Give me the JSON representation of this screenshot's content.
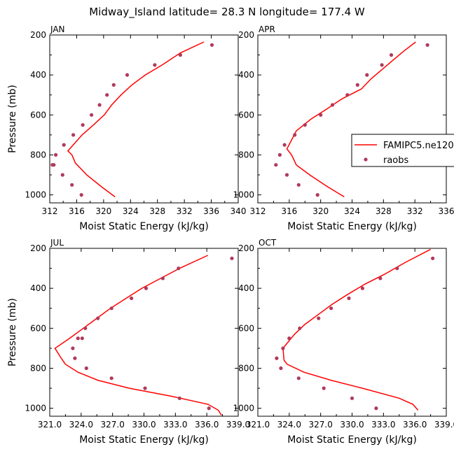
{
  "figure": {
    "title": "Midway_Island  latitude= 28.3 N longitude= 177.4 W"
  },
  "legend": {
    "model_label": "FAMIPC5.ne120.",
    "obs_label": "raobs",
    "placement": "right of APR panel",
    "model_color": "#ff0000",
    "obs_color": "#b03a5a"
  },
  "chart_data": [
    {
      "type": "line",
      "panel": "JAN",
      "title": "JAN",
      "xlabel": "Moist Static Energy (kJ/kg)",
      "ylabel": "Pressure (mb)",
      "xlim": [
        312,
        340
      ],
      "ylim": [
        200,
        1040
      ],
      "xticks": [
        312,
        316,
        320,
        324,
        328,
        332,
        336,
        340
      ],
      "xtick_labels": [
        "312",
        "316",
        "320",
        "324",
        "328",
        "332",
        "336",
        "340"
      ],
      "yticks": [
        200,
        400,
        600,
        800,
        1000
      ],
      "ytick_labels": [
        "200",
        "400",
        "600",
        "800",
        "1000"
      ],
      "series": [
        {
          "name": "FAMIPC5.ne120.",
          "style": "line",
          "x": [
            334.9,
            331.4,
            328.7,
            326.2,
            324.2,
            322.6,
            321.2,
            320.1,
            318.5,
            316.8,
            314.7,
            315.3,
            315.8,
            317.5,
            319.7,
            321.7
          ],
          "y": [
            235,
            290,
            350,
            400,
            450,
            500,
            550,
            600,
            650,
            700,
            780,
            800,
            840,
            900,
            960,
            1010
          ]
        },
        {
          "name": "raobs",
          "style": "points",
          "x": [
            336.1,
            331.4,
            327.6,
            323.5,
            321.5,
            320.5,
            319.4,
            318.2,
            316.9,
            315.5,
            314.1,
            312.9,
            312.6,
            312.4,
            313.9,
            315.3,
            316.7
          ],
          "y": [
            250,
            300,
            350,
            400,
            450,
            500,
            550,
            600,
            650,
            700,
            750,
            800,
            850,
            850,
            900,
            950,
            1000
          ]
        }
      ]
    },
    {
      "type": "line",
      "panel": "APR",
      "title": "APR",
      "xlabel": "Moist Static Energy (kJ/kg)",
      "ylabel": "",
      "xlim": [
        312,
        336
      ],
      "ylim": [
        200,
        1040
      ],
      "xticks": [
        312,
        316,
        320,
        324,
        328,
        332,
        336
      ],
      "xtick_labels": [
        "312",
        "316",
        "320",
        "324",
        "328",
        "332",
        "336"
      ],
      "yticks": [
        200,
        400,
        600,
        800,
        1000
      ],
      "ytick_labels": [
        "200",
        "400",
        "600",
        "800",
        "1000"
      ],
      "series": [
        {
          "name": "FAMIPC5.ne120.",
          "style": "line",
          "x": [
            332.1,
            330.6,
            329.1,
            327.6,
            326.4,
            325.2,
            322.7,
            320.8,
            318.8,
            316.9,
            315.7,
            316.3,
            316.9,
            318.6,
            320.9,
            323.0
          ],
          "y": [
            235,
            280,
            330,
            380,
            420,
            470,
            520,
            570,
            620,
            680,
            770,
            800,
            850,
            900,
            960,
            1010
          ]
        },
        {
          "name": "raobs",
          "style": "points",
          "x": [
            333.6,
            329.0,
            327.8,
            325.9,
            324.7,
            323.4,
            321.5,
            320.0,
            318.0,
            316.7,
            315.4,
            314.8,
            314.3,
            315.7,
            317.2,
            319.6
          ],
          "y": [
            250,
            300,
            350,
            400,
            450,
            500,
            550,
            600,
            650,
            700,
            750,
            800,
            850,
            900,
            950,
            1000
          ]
        }
      ]
    },
    {
      "type": "line",
      "panel": "JUL",
      "title": "JUL",
      "xlabel": "Moist Static Energy (kJ/kg)",
      "ylabel": "Pressure (mb)",
      "xlim": [
        321,
        339
      ],
      "ylim": [
        200,
        1040
      ],
      "xticks": [
        321,
        324,
        327,
        330,
        333,
        336,
        339
      ],
      "xtick_labels": [
        "321.0",
        "324.0",
        "327.0",
        "330.0",
        "333.0",
        "336.0",
        "339.0"
      ],
      "yticks": [
        200,
        400,
        600,
        800,
        1000
      ],
      "ytick_labels": [
        "200",
        "400",
        "600",
        "800",
        "1000"
      ],
      "series": [
        {
          "name": "FAMIPC5.ne120.",
          "style": "line",
          "x": [
            336.1,
            333.4,
            331.6,
            329.8,
            328.3,
            326.8,
            325.5,
            324.2,
            322.9,
            321.5,
            322.1,
            322.5,
            323.7,
            325.6,
            328.6,
            332.6,
            336.1,
            337.1,
            337.4
          ],
          "y": [
            235,
            300,
            350,
            400,
            450,
            500,
            550,
            600,
            650,
            700,
            750,
            780,
            820,
            860,
            900,
            940,
            980,
            1010,
            1035
          ]
        },
        {
          "name": "raobs",
          "style": "points",
          "x": [
            338.4,
            333.3,
            331.8,
            330.2,
            328.8,
            326.9,
            325.6,
            324.4,
            324.1,
            323.7,
            323.2,
            323.4,
            324.5,
            326.9,
            330.1,
            333.4,
            336.2
          ],
          "y": [
            250,
            300,
            350,
            400,
            450,
            500,
            550,
            600,
            650,
            650,
            700,
            750,
            800,
            850,
            900,
            950,
            1000
          ]
        }
      ]
    },
    {
      "type": "line",
      "panel": "OCT",
      "title": "OCT",
      "xlabel": "Moist Static Energy (kJ/kg)",
      "ylabel": "",
      "xlim": [
        321,
        339
      ],
      "ylim": [
        200,
        1040
      ],
      "xticks": [
        321,
        324,
        327,
        330,
        333,
        336,
        339
      ],
      "xtick_labels": [
        "321.0",
        "324.0",
        "327.0",
        "330.0",
        "333.0",
        "336.0",
        "339.0"
      ],
      "yticks": [
        200,
        400,
        600,
        800,
        1000
      ],
      "ytick_labels": [
        "200",
        "400",
        "600",
        "800",
        "1000"
      ],
      "series": [
        {
          "name": "FAMIPC5.ne120.",
          "style": "line",
          "x": [
            337.5,
            335.1,
            333.1,
            331.2,
            329.6,
            328.1,
            326.8,
            325.5,
            324.5,
            323.4,
            323.5,
            323.8,
            325.4,
            328.0,
            331.0,
            334.5,
            335.8,
            336.3
          ],
          "y": [
            205,
            270,
            330,
            380,
            430,
            480,
            530,
            580,
            630,
            700,
            760,
            780,
            820,
            860,
            900,
            950,
            980,
            1010
          ]
        },
        {
          "name": "raobs",
          "style": "points",
          "x": [
            337.7,
            334.3,
            332.7,
            331.0,
            329.7,
            328.0,
            326.8,
            325.0,
            324.0,
            323.4,
            322.8,
            323.2,
            324.9,
            327.3,
            330.0,
            332.3
          ],
          "y": [
            250,
            300,
            350,
            400,
            450,
            500,
            550,
            600,
            650,
            700,
            750,
            800,
            850,
            900,
            950,
            1000
          ]
        }
      ]
    }
  ]
}
